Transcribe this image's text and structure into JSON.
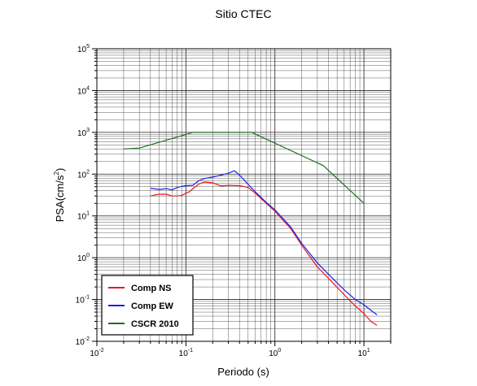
{
  "chart_data": {
    "type": "line",
    "title": "Sitio CTEC",
    "xlabel": "Periodo (s)",
    "ylabel": "PSA(cm/s²)",
    "xscale": "log",
    "yscale": "log",
    "xlim": [
      0.01,
      20
    ],
    "ylim": [
      0.01,
      100000
    ],
    "grid": true,
    "legend_position": "bottom-left",
    "x_ticks": [
      {
        "base": "10",
        "exp": "-2",
        "value": 0.01
      },
      {
        "base": "10",
        "exp": "-1",
        "value": 0.1
      },
      {
        "base": "10",
        "exp": "0",
        "value": 1
      },
      {
        "base": "10",
        "exp": "1",
        "value": 10
      }
    ],
    "y_ticks": [
      {
        "base": "10",
        "exp": "-2",
        "value": 0.01
      },
      {
        "base": "10",
        "exp": "-1",
        "value": 0.1
      },
      {
        "base": "10",
        "exp": "0",
        "value": 1
      },
      {
        "base": "10",
        "exp": "1",
        "value": 10
      },
      {
        "base": "10",
        "exp": "2",
        "value": 100
      },
      {
        "base": "10",
        "exp": "3",
        "value": 1000
      },
      {
        "base": "10",
        "exp": "4",
        "value": 10000
      },
      {
        "base": "10",
        "exp": "5",
        "value": 100000
      }
    ],
    "series": [
      {
        "name": "Comp NS",
        "color": "#e8191c",
        "x": [
          0.04,
          0.05,
          0.06,
          0.07,
          0.08,
          0.09,
          0.1,
          0.11,
          0.12,
          0.14,
          0.16,
          0.2,
          0.25,
          0.3,
          0.4,
          0.5,
          0.6,
          0.8,
          1.0,
          1.5,
          2.0,
          3.0,
          4.0,
          6.0,
          8.0,
          10.0,
          12.0,
          14.0
        ],
        "values": [
          30,
          33,
          33,
          30,
          30,
          31,
          35,
          38,
          45,
          58,
          65,
          62,
          52,
          54,
          53,
          48,
          35,
          20,
          13,
          5,
          2.0,
          0.6,
          0.32,
          0.13,
          0.07,
          0.046,
          0.03,
          0.024
        ]
      },
      {
        "name": "Comp EW",
        "color": "#1f1fe6",
        "x": [
          0.04,
          0.05,
          0.06,
          0.07,
          0.08,
          0.09,
          0.1,
          0.12,
          0.14,
          0.16,
          0.2,
          0.25,
          0.3,
          0.35,
          0.4,
          0.5,
          0.6,
          0.8,
          1.0,
          1.5,
          2.0,
          3.0,
          4.0,
          6.0,
          8.0,
          10.0,
          12.0,
          14.0
        ],
        "values": [
          46,
          43,
          45,
          42,
          48,
          51,
          53,
          54,
          70,
          78,
          85,
          95,
          105,
          120,
          95,
          57,
          38,
          21,
          14,
          5.5,
          2.2,
          0.75,
          0.4,
          0.17,
          0.1,
          0.075,
          0.055,
          0.043
        ]
      },
      {
        "name": "CSCR 2010",
        "color": "#1d6e1d",
        "x": [
          0.02,
          0.03,
          0.12,
          0.55,
          3.5,
          10.0
        ],
        "values": [
          400,
          420,
          1000,
          1000,
          160,
          20
        ]
      }
    ]
  }
}
